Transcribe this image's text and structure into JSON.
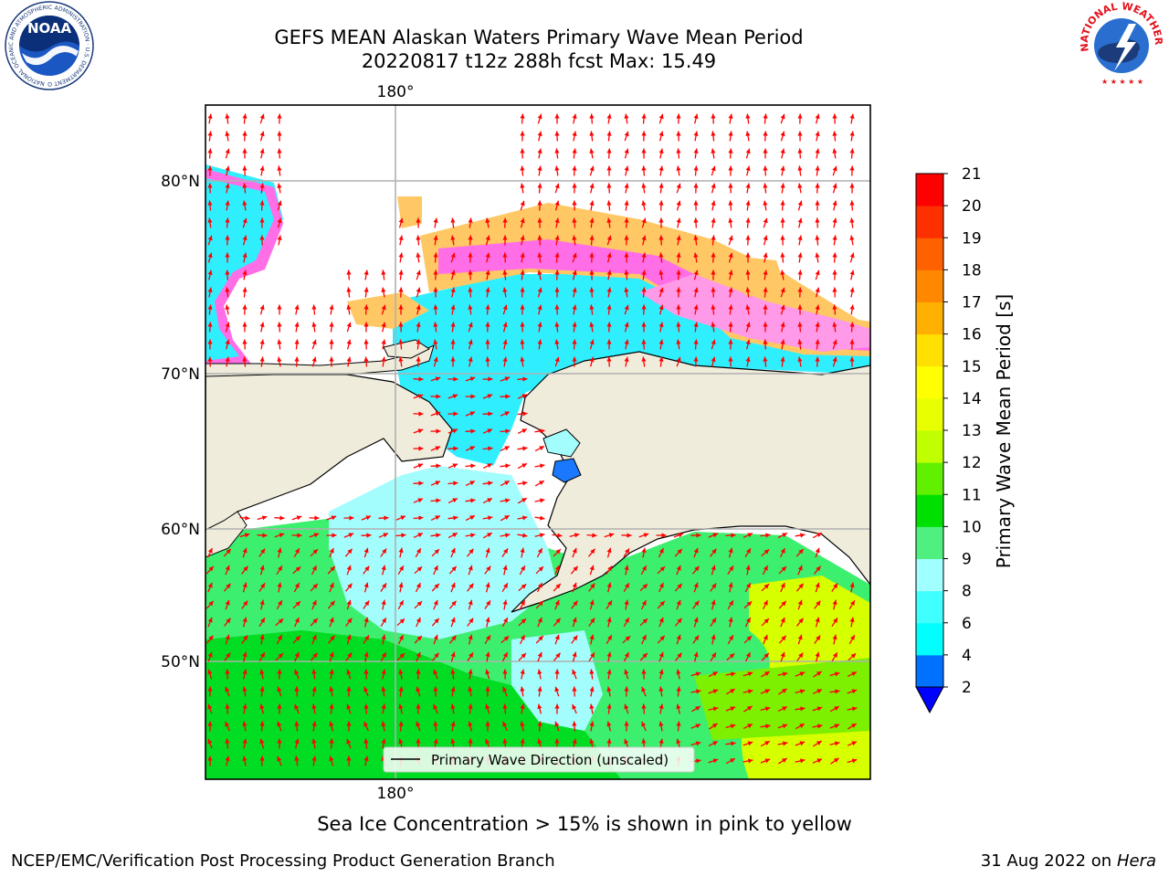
{
  "title": {
    "line1": "GEFS MEAN Alaskan Waters Primary Wave Mean Period",
    "line2": "20220817 t12z 288h fcst   Max: 15.49"
  },
  "logos": {
    "noaa_text": "NOAA",
    "noaa_ring": "NATIONAL OCEANIC AND ATMOSPHERIC ADMINISTRATION · U.S. DEPARTMENT OF COMMERCE",
    "nws_ring": "NATIONAL WEATHER SERVICE"
  },
  "map": {
    "lon_label_top": "180°",
    "lon_label_bottom": "180°",
    "lat_labels": [
      "80°N",
      "70°N",
      "60°N",
      "50°N"
    ],
    "legend_text": "Primary Wave Direction (unscaled)",
    "colors": {
      "land": "#efecdc",
      "coast": "#000000",
      "grid": "#b0b0b0",
      "arrow": "#ff0000",
      "ice_pink": "#ff6ee6",
      "ice_orange": "#ffc864",
      "ice_yellow": "#ffe27a"
    }
  },
  "colorbar": {
    "label": "Primary Wave Mean Period [s]",
    "ticks": [
      "2",
      "4",
      "6",
      "8",
      "9",
      "10",
      "11",
      "12",
      "13",
      "14",
      "15",
      "16",
      "17",
      "18",
      "19",
      "20",
      "21"
    ],
    "colors": [
      "#0070ff",
      "#00ffff",
      "#40ffff",
      "#a0ffff",
      "#50f080",
      "#00e000",
      "#60f000",
      "#c0ff00",
      "#e8ff00",
      "#ffff00",
      "#ffe000",
      "#ffb000",
      "#ff8800",
      "#ff6000",
      "#ff3000",
      "#ff0000"
    ],
    "under_color": "#0000ff"
  },
  "note": "Sea Ice Concentration > 15% is shown in pink to yellow",
  "footer": {
    "left": "NCEP/EMC/Verification Post Processing Product Generation Branch",
    "right_date": "31 Aug 2022 on",
    "right_host": "Hera"
  }
}
